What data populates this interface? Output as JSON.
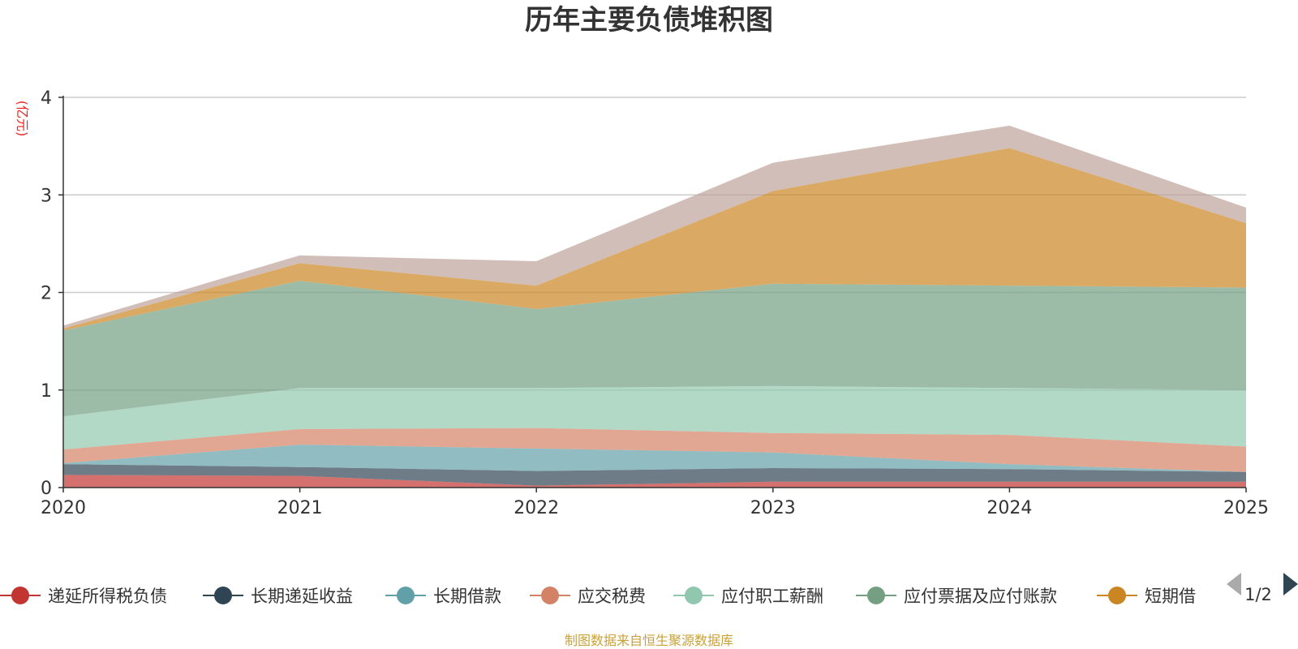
{
  "chart_data": {
    "type": "area",
    "stacked": true,
    "title": "历年主要负债堆积图",
    "ylabel": "(亿元)",
    "xlabel": "",
    "ylim": [
      0,
      4
    ],
    "y_ticks": [
      "0",
      "1",
      "2",
      "3",
      "4"
    ],
    "categories": [
      "2020",
      "2021",
      "2022",
      "2023",
      "2024",
      "2025"
    ],
    "grid": true,
    "series": [
      {
        "name": "递延所得税负债",
        "color": "#c23531",
        "values": [
          0.13,
          0.12,
          0.02,
          0.06,
          0.06,
          0.06
        ]
      },
      {
        "name": "长期递延收益",
        "color": "#2f4554",
        "values": [
          0.11,
          0.09,
          0.15,
          0.14,
          0.13,
          0.1
        ]
      },
      {
        "name": "长期借款",
        "color": "#61a0a8",
        "values": [
          0.01,
          0.23,
          0.23,
          0.16,
          0.05,
          0.0
        ]
      },
      {
        "name": "应交税费",
        "color": "#d48265",
        "values": [
          0.14,
          0.16,
          0.21,
          0.2,
          0.3,
          0.26
        ]
      },
      {
        "name": "应付职工薪酬",
        "color": "#91c7ae",
        "values": [
          0.34,
          0.42,
          0.41,
          0.48,
          0.48,
          0.58
        ]
      },
      {
        "name": "应付票据及应付账款",
        "color": "#749f83",
        "values": [
          0.88,
          1.1,
          0.81,
          1.05,
          1.05,
          1.05
        ]
      },
      {
        "name": "短期借",
        "color": "#ca8622",
        "values": [
          0.02,
          0.18,
          0.24,
          0.95,
          1.41,
          0.66
        ]
      },
      {
        "name": "",
        "color": "#bda29a",
        "values": [
          0.03,
          0.08,
          0.25,
          0.29,
          0.23,
          0.16
        ]
      }
    ],
    "legend": {
      "items": [
        "递延所得税负债",
        "长期递延收益",
        "长期借款",
        "应交税费",
        "应付职工薪酬",
        "应付票据及应付账款",
        "短期借"
      ],
      "page": "1/2",
      "position": "bottom"
    },
    "source_note": "制图数据来自恒生聚源数据库"
  }
}
